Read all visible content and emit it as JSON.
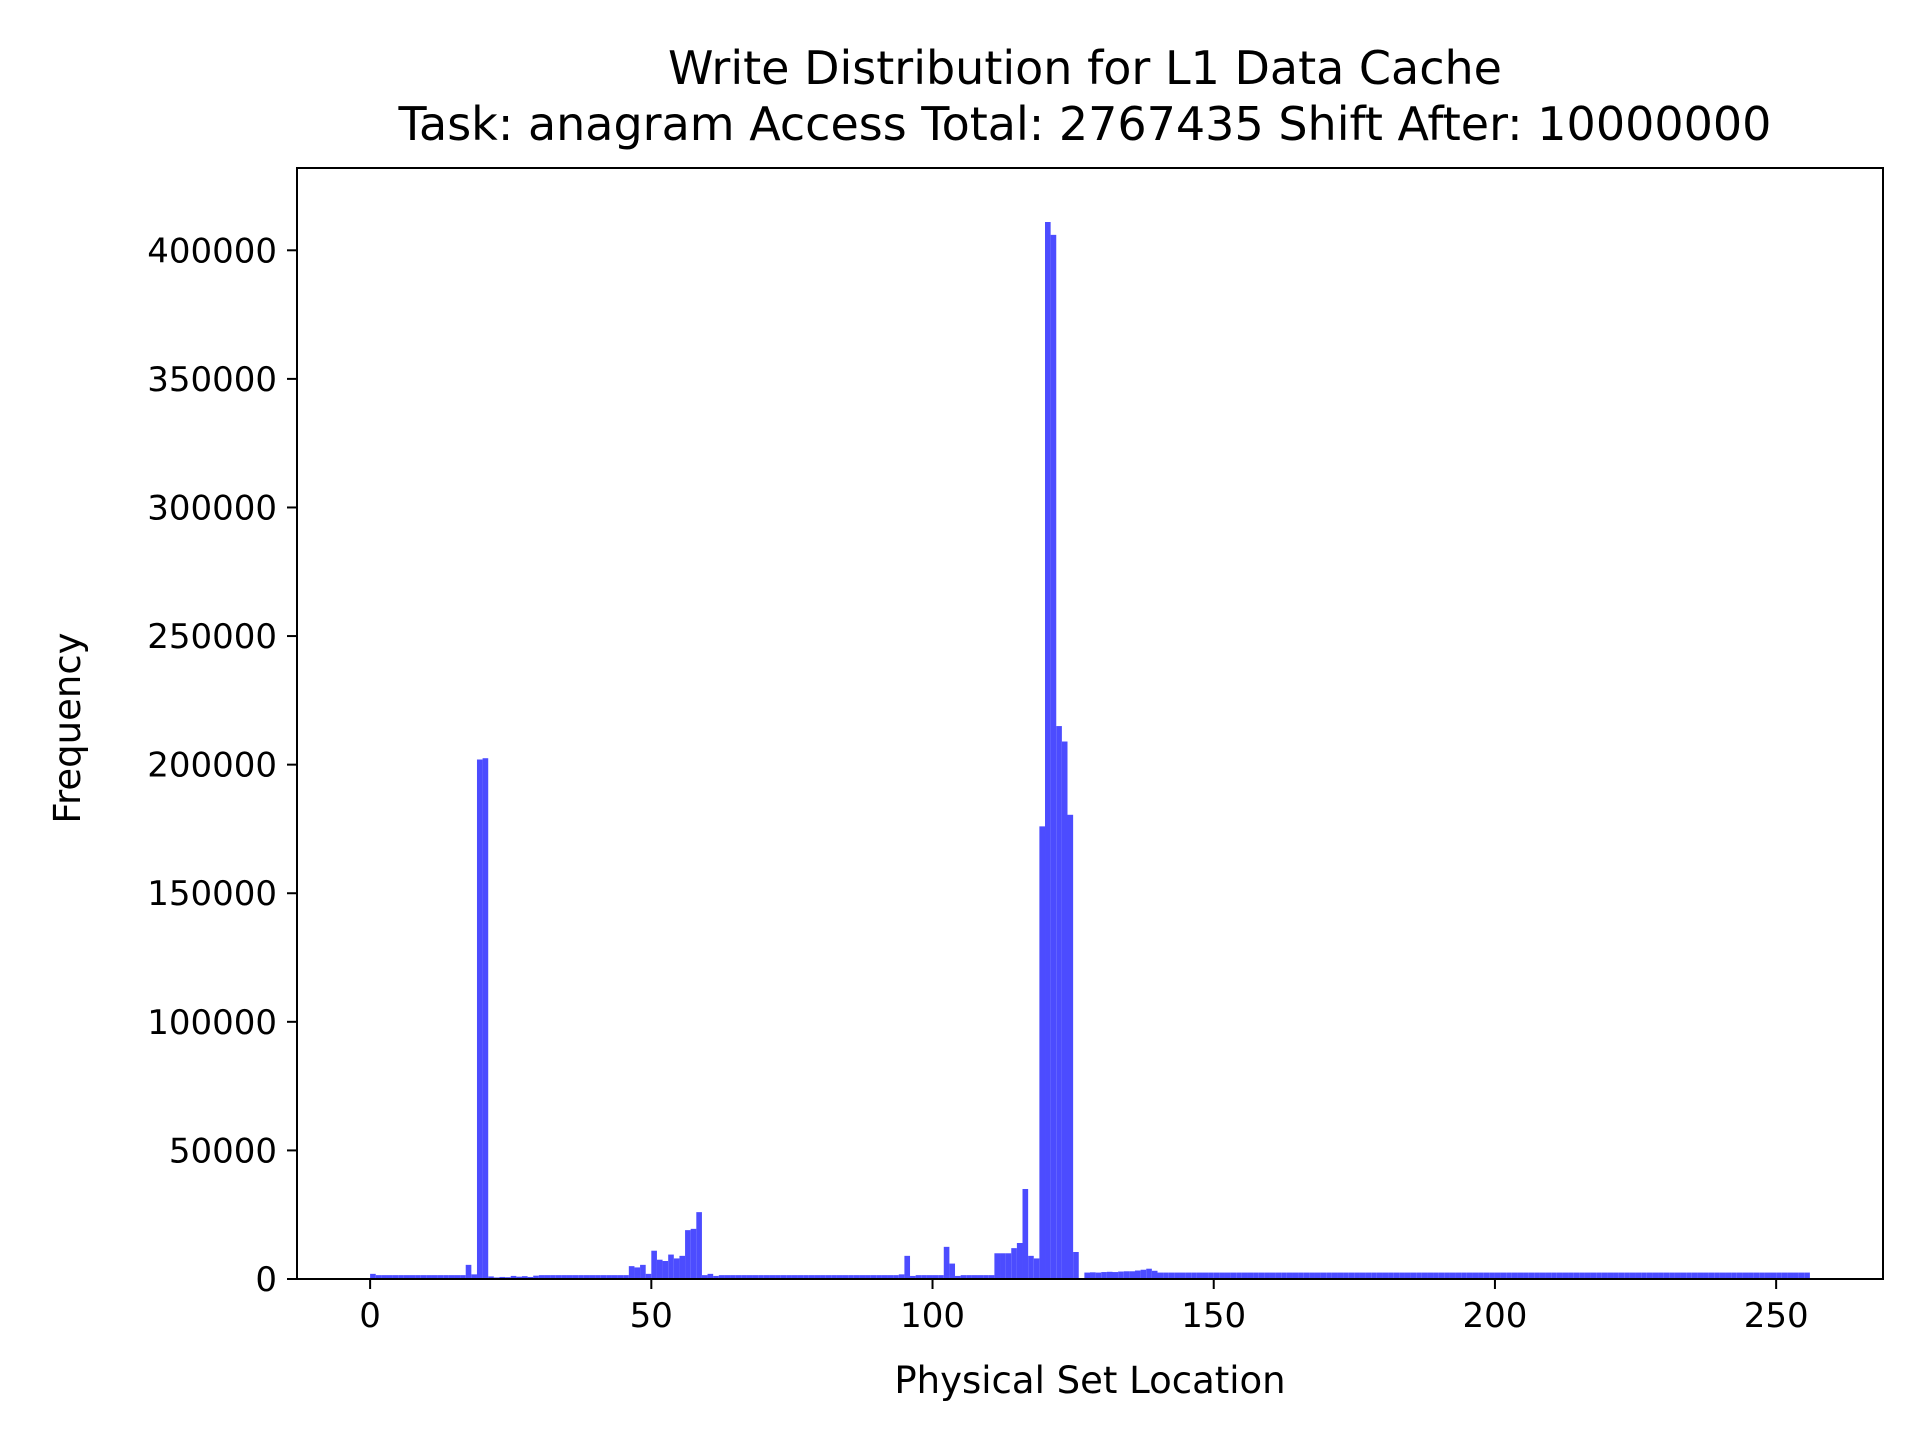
{
  "chart_data": {
    "type": "bar",
    "title_line1": "Write Distribution for L1 Data Cache",
    "title_line2": "Task: anagram Access Total: 2767435 Shift After: 10000000",
    "xlabel": "Physical Set Location",
    "ylabel": "Frequency",
    "xlim": [
      -13,
      269
    ],
    "ylim": [
      0,
      432000
    ],
    "x_ticks": [
      0,
      50,
      100,
      150,
      200,
      250
    ],
    "x_tick_labels": [
      "0",
      "50",
      "100",
      "150",
      "200",
      "250"
    ],
    "y_ticks": [
      0,
      50000,
      100000,
      150000,
      200000,
      250000,
      300000,
      350000,
      400000
    ],
    "y_tick_labels": [
      "0",
      "50000",
      "100000",
      "150000",
      "200000",
      "250000",
      "300000",
      "350000",
      "400000"
    ],
    "bar_color": "#4c4cff",
    "grid": false,
    "legend": "none",
    "bins": {
      "default_value": 1500,
      "x_start": 0,
      "bin_width": 1,
      "count": 256,
      "overrides": {
        "0": 2000,
        "17": 5500,
        "18": 1800,
        "19": 202000,
        "20": 202500,
        "21": 1000,
        "22": 600,
        "23": 800,
        "24": 700,
        "25": 1200,
        "26": 900,
        "27": 1100,
        "28": 800,
        "29": 1300,
        "46": 5000,
        "47": 4500,
        "48": 5500,
        "49": 2000,
        "50": 11000,
        "51": 7500,
        "52": 7000,
        "53": 9500,
        "54": 8000,
        "55": 9000,
        "56": 19000,
        "57": 19500,
        "58": 26000,
        "59": 1500,
        "60": 2000,
        "61": 1200,
        "94": 1800,
        "95": 9000,
        "96": 1200,
        "102": 12500,
        "103": 6000,
        "104": 1200,
        "111": 10000,
        "112": 10000,
        "113": 10000,
        "114": 12000,
        "115": 14000,
        "116": 35000,
        "117": 9000,
        "118": 8000,
        "119": 176000,
        "120": 411000,
        "121": 406000,
        "122": 215000,
        "123": 209000,
        "124": 180500,
        "125": 10500,
        "126": 300,
        "127": 2500,
        "128": 2600,
        "129": 2500,
        "130": 2700,
        "131": 2800,
        "132": 2700,
        "133": 2900,
        "134": 3000,
        "135": 3000,
        "136": 3300,
        "137": 3600,
        "138": 4000,
        "139": 3200,
        "140": 2500
      },
      "tail_from": 140,
      "tail_value": 2500
    }
  }
}
